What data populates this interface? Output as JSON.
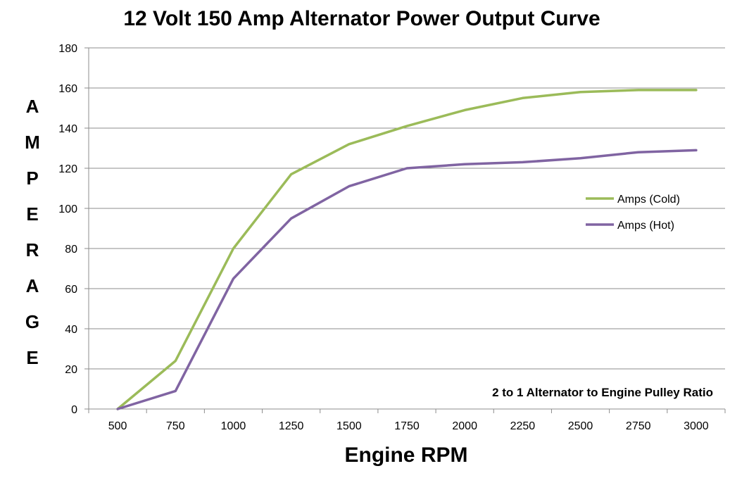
{
  "chart_data": {
    "type": "line",
    "title": "12 Volt 150 Amp Alternator Power Output Curve",
    "xlabel": "Engine RPM",
    "ylabel": "AMPERAGE",
    "categories": [
      "500",
      "750",
      "1000",
      "1250",
      "1500",
      "1750",
      "2000",
      "2250",
      "2500",
      "2750",
      "3000"
    ],
    "ylim": [
      0,
      180
    ],
    "yticks": [
      0,
      20,
      40,
      60,
      80,
      100,
      120,
      140,
      160,
      180
    ],
    "grid": "horizontal",
    "legend_position": "right",
    "annotation": "2 to 1 Alternator to Engine Pulley Ratio",
    "series": [
      {
        "name": "Amps (Cold)",
        "color": "#9BBB59",
        "values": [
          0,
          24,
          80,
          117,
          132,
          141,
          149,
          155,
          158,
          159,
          159
        ]
      },
      {
        "name": "Amps (Hot)",
        "color": "#8064A2",
        "values": [
          0,
          9,
          65,
          95,
          111,
          120,
          122,
          123,
          125,
          128,
          129
        ]
      }
    ]
  }
}
